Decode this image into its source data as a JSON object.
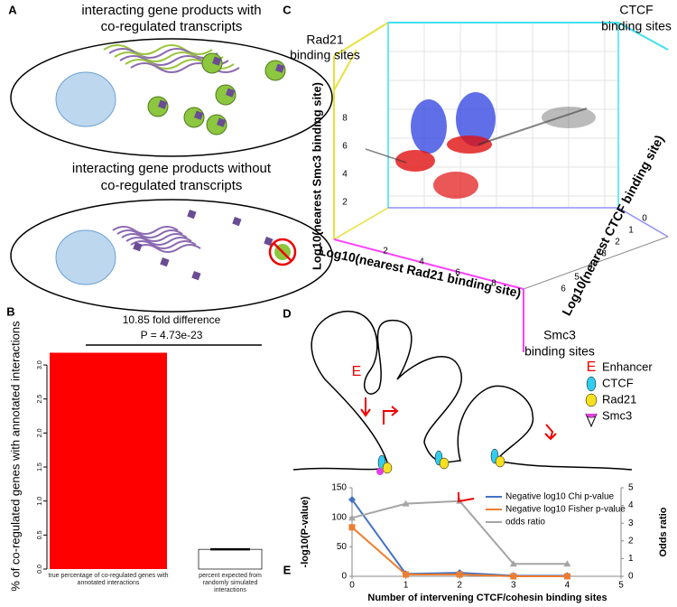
{
  "panel_a": {
    "label": "A",
    "top_text": [
      "interacting gene products with",
      "co-regulated transcripts"
    ],
    "bottom_text": [
      "interacting gene products without",
      "co-regulated transcripts"
    ]
  },
  "panel_b": {
    "label": "B"
  },
  "panel_c": {
    "label": "C",
    "ctcf_label": [
      "CTCF",
      "binding sites"
    ],
    "rad21_label": [
      "Rad21",
      "binding sites"
    ],
    "smc3_label": [
      "Smc3",
      "binding sites"
    ],
    "z_title": "Log10(nearest Smc3 binding site)",
    "x_title": "Log10(nearest Rad21 binding site)",
    "y_title": "Log10(nearest CTCF binding site)",
    "z_ticks": [
      "2",
      "4",
      "6",
      "8"
    ],
    "x_ticks": [
      "2",
      "4",
      "6",
      "8"
    ],
    "y_ticks": [
      "0",
      "1",
      "2",
      "3",
      "4",
      "5",
      "6"
    ]
  },
  "panel_d": {
    "label": "D",
    "enhancer_mark": "E",
    "legend": [
      {
        "symbol": "E",
        "text": "Enhancer"
      },
      {
        "text": "CTCF"
      },
      {
        "text": "Rad21"
      },
      {
        "text": "Smc3"
      }
    ]
  },
  "panel_e": {
    "label": "E"
  },
  "chart_data": [
    {
      "type": "bar",
      "annotation": "10.85 fold difference",
      "p_value": "P = 4.73e-23",
      "y_label": "% of co-regulated genes with annotated interactions",
      "categories": [
        "true percentage of co-regulated genes with annotated interactions",
        "percent expected from randomly simulated interactions"
      ],
      "values": [
        3.18,
        0.29
      ],
      "colors": [
        "#ff0000",
        "#ffffff"
      ],
      "ylim": [
        0,
        3.2
      ],
      "yticks": [
        {
          "value": 0,
          "label": "0.0"
        },
        {
          "value": 0.5,
          "label": "0.5"
        },
        {
          "value": 1,
          "label": "1.0"
        },
        {
          "value": 1.5,
          "label": "1.5"
        },
        {
          "value": 2,
          "label": "2.0"
        },
        {
          "value": 2.5,
          "label": "2.5"
        },
        {
          "value": 3,
          "label": "3.0"
        }
      ]
    },
    {
      "type": "line",
      "x_label": "Number of intervening CTCF/cohesin binding sites",
      "y_label": "-log10(P-value)",
      "y2_label": "Odds ratio",
      "x": [
        0,
        1,
        2,
        3,
        4
      ],
      "xlim": [
        0,
        5
      ],
      "xticks": [
        0,
        1,
        2,
        3,
        4,
        5
      ],
      "ylim": [
        0,
        150
      ],
      "yticks": [
        0,
        50,
        100,
        150
      ],
      "y2lim": [
        0,
        5
      ],
      "y2ticks": [
        0,
        1,
        2,
        3,
        4,
        5
      ],
      "series": [
        {
          "name": "Negative log10 Chi p-value",
          "color": "#4472c4",
          "marker": "diamond",
          "values": [
            130,
            4,
            6,
            1,
            1
          ]
        },
        {
          "name": "Negative log10 Fisher p-value",
          "color": "#ed7d31",
          "marker": "square",
          "values": [
            83,
            3,
            3,
            0,
            0
          ]
        },
        {
          "name": "odds ratio",
          "color": "#a5a5a5",
          "marker": "triangle",
          "axis": "y2",
          "values": [
            3.3,
            4.1,
            4.25,
            0.7,
            0.7
          ]
        }
      ]
    }
  ]
}
